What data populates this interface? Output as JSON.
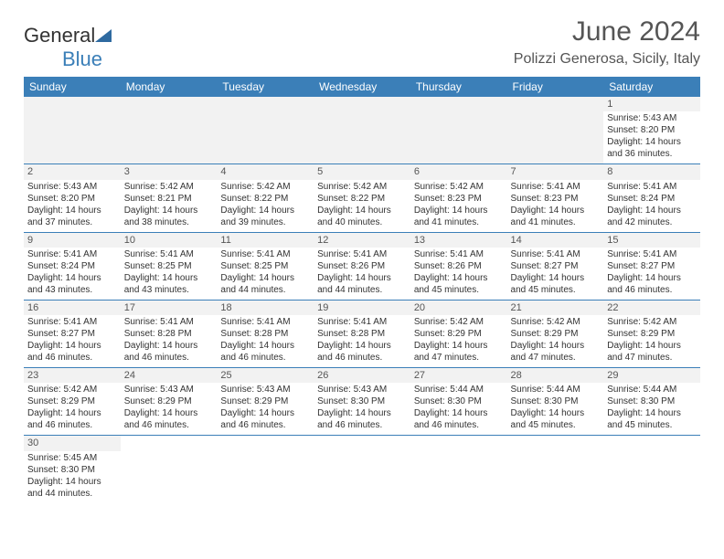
{
  "logo": {
    "part1": "General",
    "part2": "Blue"
  },
  "title": "June 2024",
  "location": "Polizzi Generosa, Sicily, Italy",
  "header_bg": "#3b7fb8",
  "header_fg": "#ffffff",
  "days_of_week": [
    "Sunday",
    "Monday",
    "Tuesday",
    "Wednesday",
    "Thursday",
    "Friday",
    "Saturday"
  ],
  "weeks": [
    [
      null,
      null,
      null,
      null,
      null,
      null,
      {
        "n": "1",
        "sr": "Sunrise: 5:43 AM",
        "ss": "Sunset: 8:20 PM",
        "d1": "Daylight: 14 hours",
        "d2": "and 36 minutes."
      }
    ],
    [
      {
        "n": "2",
        "sr": "Sunrise: 5:43 AM",
        "ss": "Sunset: 8:20 PM",
        "d1": "Daylight: 14 hours",
        "d2": "and 37 minutes."
      },
      {
        "n": "3",
        "sr": "Sunrise: 5:42 AM",
        "ss": "Sunset: 8:21 PM",
        "d1": "Daylight: 14 hours",
        "d2": "and 38 minutes."
      },
      {
        "n": "4",
        "sr": "Sunrise: 5:42 AM",
        "ss": "Sunset: 8:22 PM",
        "d1": "Daylight: 14 hours",
        "d2": "and 39 minutes."
      },
      {
        "n": "5",
        "sr": "Sunrise: 5:42 AM",
        "ss": "Sunset: 8:22 PM",
        "d1": "Daylight: 14 hours",
        "d2": "and 40 minutes."
      },
      {
        "n": "6",
        "sr": "Sunrise: 5:42 AM",
        "ss": "Sunset: 8:23 PM",
        "d1": "Daylight: 14 hours",
        "d2": "and 41 minutes."
      },
      {
        "n": "7",
        "sr": "Sunrise: 5:41 AM",
        "ss": "Sunset: 8:23 PM",
        "d1": "Daylight: 14 hours",
        "d2": "and 41 minutes."
      },
      {
        "n": "8",
        "sr": "Sunrise: 5:41 AM",
        "ss": "Sunset: 8:24 PM",
        "d1": "Daylight: 14 hours",
        "d2": "and 42 minutes."
      }
    ],
    [
      {
        "n": "9",
        "sr": "Sunrise: 5:41 AM",
        "ss": "Sunset: 8:24 PM",
        "d1": "Daylight: 14 hours",
        "d2": "and 43 minutes."
      },
      {
        "n": "10",
        "sr": "Sunrise: 5:41 AM",
        "ss": "Sunset: 8:25 PM",
        "d1": "Daylight: 14 hours",
        "d2": "and 43 minutes."
      },
      {
        "n": "11",
        "sr": "Sunrise: 5:41 AM",
        "ss": "Sunset: 8:25 PM",
        "d1": "Daylight: 14 hours",
        "d2": "and 44 minutes."
      },
      {
        "n": "12",
        "sr": "Sunrise: 5:41 AM",
        "ss": "Sunset: 8:26 PM",
        "d1": "Daylight: 14 hours",
        "d2": "and 44 minutes."
      },
      {
        "n": "13",
        "sr": "Sunrise: 5:41 AM",
        "ss": "Sunset: 8:26 PM",
        "d1": "Daylight: 14 hours",
        "d2": "and 45 minutes."
      },
      {
        "n": "14",
        "sr": "Sunrise: 5:41 AM",
        "ss": "Sunset: 8:27 PM",
        "d1": "Daylight: 14 hours",
        "d2": "and 45 minutes."
      },
      {
        "n": "15",
        "sr": "Sunrise: 5:41 AM",
        "ss": "Sunset: 8:27 PM",
        "d1": "Daylight: 14 hours",
        "d2": "and 46 minutes."
      }
    ],
    [
      {
        "n": "16",
        "sr": "Sunrise: 5:41 AM",
        "ss": "Sunset: 8:27 PM",
        "d1": "Daylight: 14 hours",
        "d2": "and 46 minutes."
      },
      {
        "n": "17",
        "sr": "Sunrise: 5:41 AM",
        "ss": "Sunset: 8:28 PM",
        "d1": "Daylight: 14 hours",
        "d2": "and 46 minutes."
      },
      {
        "n": "18",
        "sr": "Sunrise: 5:41 AM",
        "ss": "Sunset: 8:28 PM",
        "d1": "Daylight: 14 hours",
        "d2": "and 46 minutes."
      },
      {
        "n": "19",
        "sr": "Sunrise: 5:41 AM",
        "ss": "Sunset: 8:28 PM",
        "d1": "Daylight: 14 hours",
        "d2": "and 46 minutes."
      },
      {
        "n": "20",
        "sr": "Sunrise: 5:42 AM",
        "ss": "Sunset: 8:29 PM",
        "d1": "Daylight: 14 hours",
        "d2": "and 47 minutes."
      },
      {
        "n": "21",
        "sr": "Sunrise: 5:42 AM",
        "ss": "Sunset: 8:29 PM",
        "d1": "Daylight: 14 hours",
        "d2": "and 47 minutes."
      },
      {
        "n": "22",
        "sr": "Sunrise: 5:42 AM",
        "ss": "Sunset: 8:29 PM",
        "d1": "Daylight: 14 hours",
        "d2": "and 47 minutes."
      }
    ],
    [
      {
        "n": "23",
        "sr": "Sunrise: 5:42 AM",
        "ss": "Sunset: 8:29 PM",
        "d1": "Daylight: 14 hours",
        "d2": "and 46 minutes."
      },
      {
        "n": "24",
        "sr": "Sunrise: 5:43 AM",
        "ss": "Sunset: 8:29 PM",
        "d1": "Daylight: 14 hours",
        "d2": "and 46 minutes."
      },
      {
        "n": "25",
        "sr": "Sunrise: 5:43 AM",
        "ss": "Sunset: 8:29 PM",
        "d1": "Daylight: 14 hours",
        "d2": "and 46 minutes."
      },
      {
        "n": "26",
        "sr": "Sunrise: 5:43 AM",
        "ss": "Sunset: 8:30 PM",
        "d1": "Daylight: 14 hours",
        "d2": "and 46 minutes."
      },
      {
        "n": "27",
        "sr": "Sunrise: 5:44 AM",
        "ss": "Sunset: 8:30 PM",
        "d1": "Daylight: 14 hours",
        "d2": "and 46 minutes."
      },
      {
        "n": "28",
        "sr": "Sunrise: 5:44 AM",
        "ss": "Sunset: 8:30 PM",
        "d1": "Daylight: 14 hours",
        "d2": "and 45 minutes."
      },
      {
        "n": "29",
        "sr": "Sunrise: 5:44 AM",
        "ss": "Sunset: 8:30 PM",
        "d1": "Daylight: 14 hours",
        "d2": "and 45 minutes."
      }
    ],
    [
      {
        "n": "30",
        "sr": "Sunrise: 5:45 AM",
        "ss": "Sunset: 8:30 PM",
        "d1": "Daylight: 14 hours",
        "d2": "and 44 minutes."
      },
      null,
      null,
      null,
      null,
      null,
      null
    ]
  ]
}
